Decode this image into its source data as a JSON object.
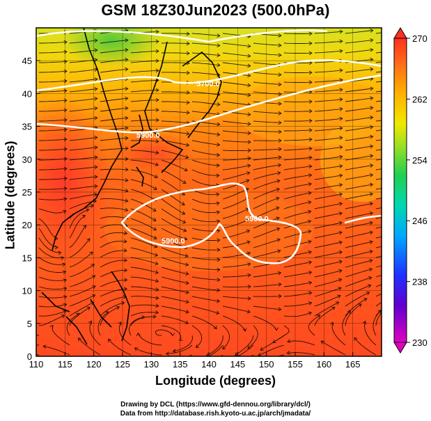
{
  "title": "GSM 18Z30Jun2023 (500.0hPa)",
  "xlabel": "Longitude (degrees)",
  "ylabel": "Latitude (degrees)",
  "credits": {
    "line1": "Drawing by DCL (https://www.gfd-dennou.org/library/dcl/)",
    "line2": "Data from http://database.rish.kyoto-u.ac.jp/arch/jmadata/"
  },
  "map": {
    "lon_range": [
      110,
      170
    ],
    "lat_range": [
      0,
      50
    ],
    "x_ticks": [
      "110",
      "115",
      "120",
      "125",
      "130",
      "135",
      "140",
      "145",
      "150",
      "155",
      "160",
      "165"
    ],
    "y_ticks": [
      "0",
      "5",
      "10",
      "15",
      "20",
      "25",
      "30",
      "35",
      "40",
      "45"
    ],
    "contour_labels": [
      "5700.0",
      "5900.0",
      "5900.0",
      "5900.0"
    ],
    "field_colors": {
      "warm": "#ff4422",
      "mid": "#ff7a18",
      "cool": "#ffb000",
      "cold": "#c8e020",
      "coldest": "#7ad02a"
    }
  },
  "colorbar": {
    "ticks": [
      "270",
      "262",
      "254",
      "246",
      "238",
      "230"
    ],
    "range": [
      230,
      270
    ],
    "colors": [
      "#d000d0",
      "#4a00c8",
      "#2040ff",
      "#00a0ff",
      "#00d0c0",
      "#20d060",
      "#80e020",
      "#e0e000",
      "#ffb000",
      "#ff7020",
      "#ff3020"
    ]
  }
}
